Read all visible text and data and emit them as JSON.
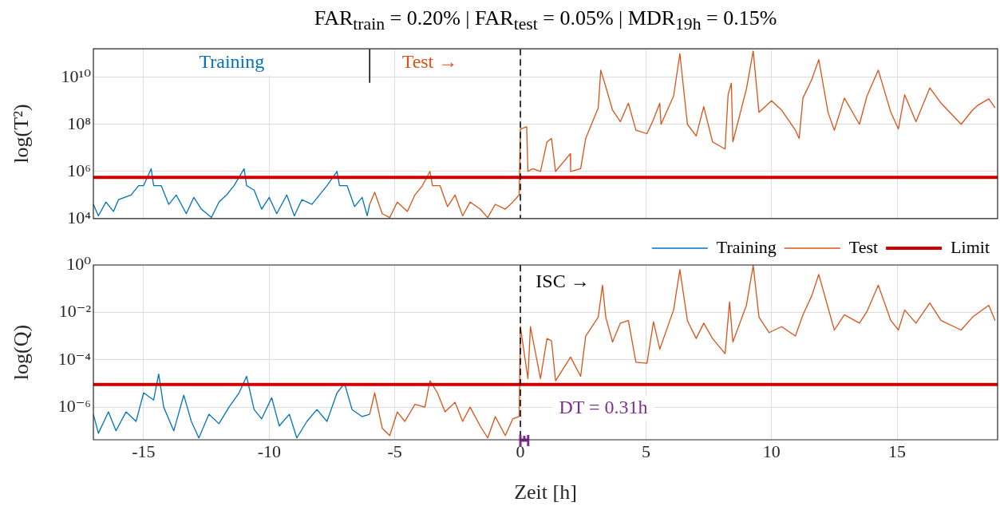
{
  "chart_data": [
    {
      "type": "line",
      "title": "FAR$_{train}$ = 0.20% | FAR$_{test}$ = 0.05% | MDR$_{19h}$ = 0.15%",
      "ylabel": "log(T²)",
      "log": true,
      "grid": true,
      "tick_labels": "y",
      "marker": "none",
      "xlim": [
        -17,
        19
      ],
      "xticks": [
        -15,
        -10,
        -5,
        0,
        5,
        10,
        15
      ],
      "ylim": [
        10000,
        160000000000
      ],
      "yticks": [
        {
          "value": 10000,
          "label": "10⁴"
        },
        {
          "value": 1000000,
          "label": "10⁶"
        },
        {
          "value": 100000000,
          "label": "10⁸"
        },
        {
          "value": 10000000000,
          "label": "10¹⁰"
        }
      ],
      "series": [
        {
          "color": "#0072bd",
          "x": [
            -17,
            -16.8,
            -16.5,
            -16.2,
            -16,
            -15.5,
            -15.2,
            -15,
            -14.7,
            -14.6,
            -14.3,
            -14,
            -13.7,
            -13.3,
            -13,
            -12.7,
            -12.3,
            -12,
            -11.7,
            -11.4,
            -11,
            -10.9,
            -10.6,
            -10.3,
            -10,
            -9.7,
            -9.3,
            -9,
            -8.7,
            -8.3,
            -8,
            -7.7,
            -7.3,
            -7.2,
            -6.9,
            -6.6,
            -6.3,
            -6.1,
            -6
          ],
          "values": [
            40000.0,
            13000.0,
            50000.0,
            20000.0,
            63000.0,
            100000.0,
            250000.0,
            250000.0,
            1300000.0,
            250000.0,
            250000.0,
            40000.0,
            100000.0,
            16000.0,
            79000.0,
            25000.0,
            11000.0,
            50000.0,
            100000.0,
            250000.0,
            1300000.0,
            250000.0,
            160000.0,
            25000.0,
            79000.0,
            16000.0,
            100000.0,
            13000.0,
            63000.0,
            40000.0,
            100000.0,
            250000.0,
            1000000.0,
            250000.0,
            250000.0,
            32000.0,
            79000.0,
            13000.0,
            40000.0
          ]
        },
        {
          "color": "#d95319",
          "x": [
            -6,
            -5.8,
            -5.5,
            -5.2,
            -4.9,
            -4.5,
            -4.2,
            -3.9,
            -3.6,
            -3.5,
            -3.2,
            -2.9,
            -2.6,
            -2.3,
            -2,
            -1.6,
            -1.3,
            -1,
            -0.6,
            -0.3,
            -0.05,
            0,
            0.25,
            0.3,
            0.5,
            0.8,
            1.06,
            1.24,
            1.4,
            1.99,
            2,
            2.4,
            2.6,
            3.1,
            3.2,
            3.4,
            3.67,
            3.98,
            4.3,
            4.6,
            5.04,
            5.3,
            5.55,
            5.6,
            6.1,
            6.35,
            6.65,
            7,
            7.3,
            7.65,
            8.15,
            8.27,
            8.4,
            8.46,
            9,
            9.27,
            9.5,
            10,
            10.4,
            10.95,
            11.1,
            11.25,
            11.6,
            11.88,
            12.25,
            12.5,
            12.9,
            13.5,
            13.8,
            14.25,
            14.75,
            15.05,
            15.3,
            15.75,
            16.3,
            16.75,
            17.55,
            18,
            18.2,
            18.65,
            18.9
          ],
          "values": [
            40000.0,
            130000.0,
            16000.0,
            11000.0,
            50000.0,
            20000.0,
            100000.0,
            250000.0,
            1000000.0,
            250000.0,
            250000.0,
            32000.0,
            100000.0,
            13000.0,
            50000.0,
            25000.0,
            11000.0,
            40000.0,
            25000.0,
            50000.0,
            100000.0,
            63000000.0,
            79000000.0,
            1000000.0,
            1300000.0,
            1000000.0,
            18000000.0,
            25000000.0,
            1000000.0,
            5600000.0,
            1000000.0,
            1300000.0,
            25000000.0,
            500000000.0,
            20000000000.0,
            4000000000.0,
            400000000.0,
            130000000.0,
            790000000.0,
            56000000.0,
            40000000.0,
            160000000.0,
            790000000.0,
            100000000.0,
            1600000000.0,
            100000000000.0,
            100000000.0,
            32000000.0,
            560000000.0,
            18000000.0,
            8900000.0,
            1800000000.0,
            5600000000.0,
            18000000.0,
            3200000000.0,
            130000000000.0,
            320000000.0,
            1000000000.0,
            400000000.0,
            56000000.0,
            25000000.0,
            1300000000.0,
            7900000000.0,
            56000000000.0,
            320000000.0,
            56000000.0,
            1300000000.0,
            100000000.0,
            1600000000.0,
            20000000000.0,
            320000000.0,
            63000000.0,
            1800000000.0,
            130000000.0,
            3500000000.0,
            790000000.0,
            100000000.0,
            400000000.0,
            630000000.0,
            1200000000.0,
            500000000.0
          ]
        }
      ],
      "ref_lines": [
        {
          "axis": "y",
          "value": 560000,
          "color": "#cc0000"
        },
        {
          "axis": "x",
          "value": 0,
          "color": "#000000",
          "line_style": "dashed"
        },
        {
          "axis": "x",
          "value": -6,
          "color": "#000000",
          "line_style": "solid"
        }
      ],
      "annotations": [
        "Training",
        "Test →"
      ]
    },
    {
      "type": "line",
      "xlabel": "Zeit [h]",
      "ylabel": "log(Q)",
      "log": true,
      "grid": true,
      "marker": "none",
      "legend": "top right",
      "xlim": [
        -17,
        19
      ],
      "xticks": [
        -15,
        -10,
        -5,
        0,
        5,
        10,
        15
      ],
      "ylim": [
        4.2e-08,
        1
      ],
      "yticks": [
        {
          "value": 1e-06,
          "label": "10⁻⁶"
        },
        {
          "value": 0.0001,
          "label": "10⁻⁴"
        },
        {
          "value": 0.01,
          "label": "10⁻²"
        },
        {
          "value": 1,
          "label": "10⁰"
        }
      ],
      "series": [
        {
          "name": "Training",
          "color": "#0072bd",
          "x": [
            -17,
            -16.8,
            -16.4,
            -16.1,
            -15.7,
            -15.3,
            -15,
            -14.6,
            -14.4,
            -14.2,
            -13.8,
            -13.4,
            -13.1,
            -12.8,
            -12.4,
            -12,
            -11.6,
            -11.2,
            -10.9,
            -10.6,
            -10.3,
            -9.9,
            -9.6,
            -9.2,
            -8.9,
            -8.5,
            -8.1,
            -7.7,
            -7.3,
            -7,
            -6.7,
            -6.3,
            -6
          ],
          "values": [
            5e-07,
            7.9e-08,
            6.3e-07,
            1e-07,
            6.3e-07,
            2.5e-07,
            4e-06,
            2e-06,
            2.5e-05,
            1e-06,
            1e-07,
            3.2e-06,
            2.5e-07,
            5e-08,
            5e-07,
            2e-07,
            1e-06,
            4e-06,
            2e-05,
            7.9e-07,
            3.2e-07,
            2.5e-06,
            1.6e-07,
            5e-07,
            5e-08,
            2.5e-07,
            7.9e-07,
            2.5e-07,
            4e-06,
            1e-05,
            7.9e-07,
            4e-07,
            5e-07
          ]
        },
        {
          "name": "Test",
          "color": "#d95319",
          "x": [
            -6,
            -5.8,
            -5.5,
            -5.2,
            -4.9,
            -4.6,
            -4.2,
            -3.8,
            -3.6,
            -3.3,
            -3,
            -2.6,
            -2.3,
            -2,
            -1.6,
            -1.3,
            -1,
            -0.6,
            -0.3,
            -0.05,
            0,
            0.3,
            0.4,
            0.8,
            1.06,
            1.24,
            1.4,
            2,
            2.4,
            2.6,
            3.1,
            3.27,
            3.4,
            3.67,
            3.98,
            4.3,
            4.6,
            5.04,
            5.3,
            5.55,
            6.1,
            6.35,
            6.65,
            7,
            7.3,
            7.65,
            8.15,
            8.33,
            8.46,
            9,
            9.27,
            9.5,
            9.9,
            10.4,
            10.95,
            11.25,
            11.6,
            11.88,
            12.5,
            12.9,
            13.5,
            13.8,
            14.25,
            14.75,
            15.05,
            15.3,
            15.75,
            16.3,
            16.75,
            17.55,
            18,
            18.65,
            18.9
          ],
          "values": [
            5e-07,
            4e-06,
            1.3e-07,
            6.3e-08,
            6.3e-07,
            2.5e-07,
            1.3e-06,
            1e-06,
            1.3e-05,
            4e-06,
            6.3e-07,
            1.6e-06,
            2.5e-07,
            1e-06,
            1.6e-07,
            5e-08,
            4e-07,
            6.3e-08,
            3.2e-07,
            4e-07,
            0.0025,
            1.6e-05,
            0.0025,
            1.6e-05,
            0.00079,
            0.00063,
            1.3e-05,
            0.00013,
            2e-05,
            0.001,
            0.0063,
            0.14,
            0.0063,
            0.00056,
            0.0035,
            0.0045,
            7.9e-05,
            7.1e-05,
            0.004,
            0.00028,
            0.0126,
            0.63,
            0.0045,
            0.00079,
            0.0035,
            0.00079,
            0.00018,
            0.028,
            0.00056,
            0.02,
            0.95,
            0.0063,
            0.0014,
            0.0025,
            0.001,
            0.0079,
            0.05,
            0.4,
            0.0018,
            0.0079,
            0.0035,
            0.011,
            0.14,
            0.0045,
            0.0018,
            0.0126,
            0.0035,
            0.025,
            0.0045,
            0.0018,
            0.0063,
            0.02,
            0.0045
          ]
        },
        {
          "type": "scatter",
          "marker": "cross",
          "color": "#7e2f8e",
          "x": [
            0.155
          ],
          "values": [
            4.2e-08
          ],
          "xerrors": [
            [
              0,
              0.31
            ]
          ]
        }
      ],
      "ref_lines": [
        {
          "axis": "y",
          "value": 9e-06,
          "label": "Limit",
          "color": "#cc0000"
        },
        {
          "axis": "x",
          "value": 0,
          "color": "#000000",
          "line_style": "dashed"
        }
      ],
      "annotations": [
        "ISC →",
        "DT = 0.31h"
      ]
    }
  ]
}
